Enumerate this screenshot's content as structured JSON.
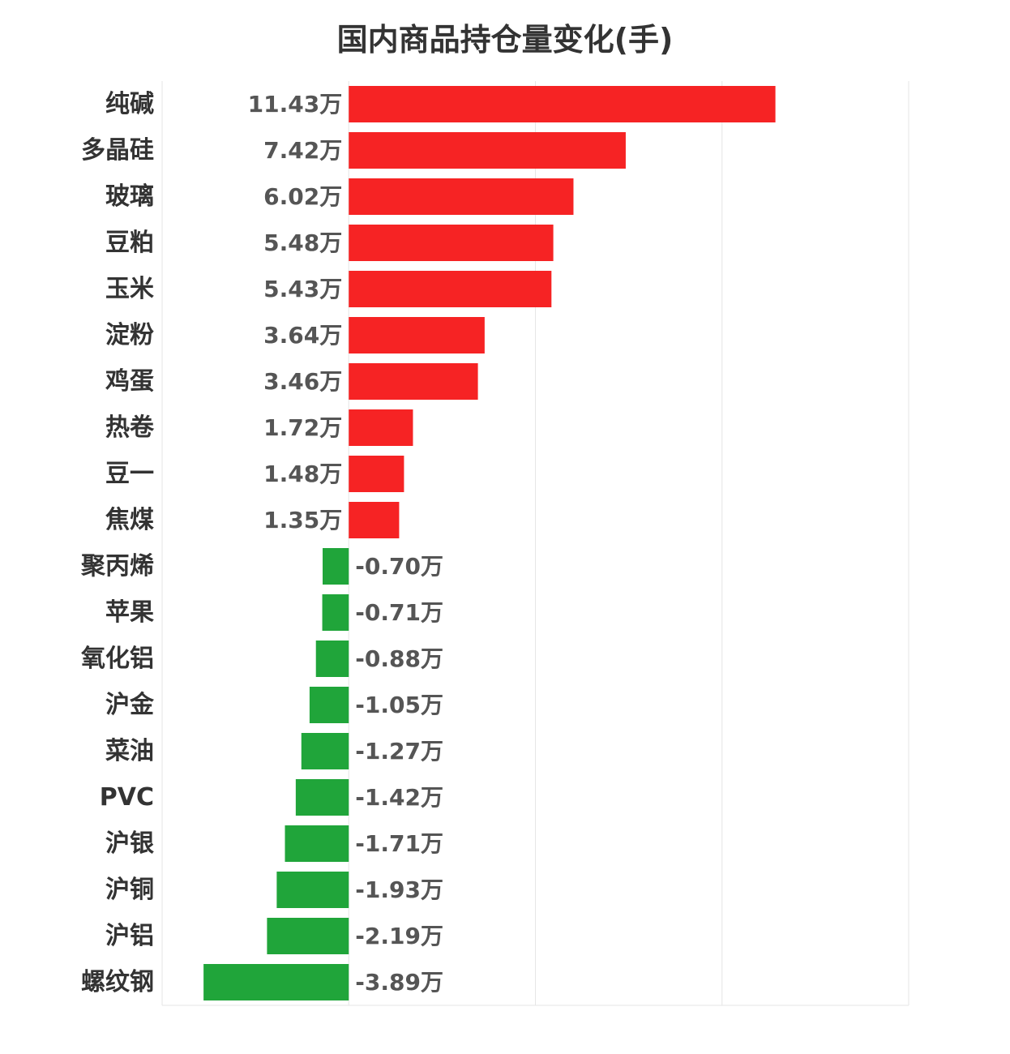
{
  "title": "国内商品持仓量变化(手)",
  "chart_data": {
    "type": "bar",
    "orientation": "horizontal",
    "title": "国内商品持仓量变化(手)",
    "unit": "万",
    "xlim": [
      -5,
      15
    ],
    "grid": true,
    "positive_color": "#f62324",
    "negative_color": "#20a53a",
    "categories": [
      "纯碱",
      "多晶硅",
      "玻璃",
      "豆粕",
      "玉米",
      "淀粉",
      "鸡蛋",
      "热卷",
      "豆一",
      "焦煤",
      "聚丙烯",
      "苹果",
      "氧化铝",
      "沪金",
      "菜油",
      "PVC",
      "沪银",
      "沪铜",
      "沪铝",
      "螺纹钢"
    ],
    "values": [
      11.43,
      7.42,
      6.02,
      5.48,
      5.43,
      3.64,
      3.46,
      1.72,
      1.48,
      1.35,
      -0.7,
      -0.71,
      -0.88,
      -1.05,
      -1.27,
      -1.42,
      -1.71,
      -1.93,
      -2.19,
      -3.89
    ],
    "value_labels": [
      "11.43万",
      "7.42万",
      "6.02万",
      "5.48万",
      "5.43万",
      "3.64万",
      "3.46万",
      "1.72万",
      "1.48万",
      "1.35万",
      "-0.70万",
      "-0.71万",
      "-0.88万",
      "-1.05万",
      "-1.27万",
      "-1.42万",
      "-1.71万",
      "-1.93万",
      "-2.19万",
      "-3.89万"
    ]
  }
}
